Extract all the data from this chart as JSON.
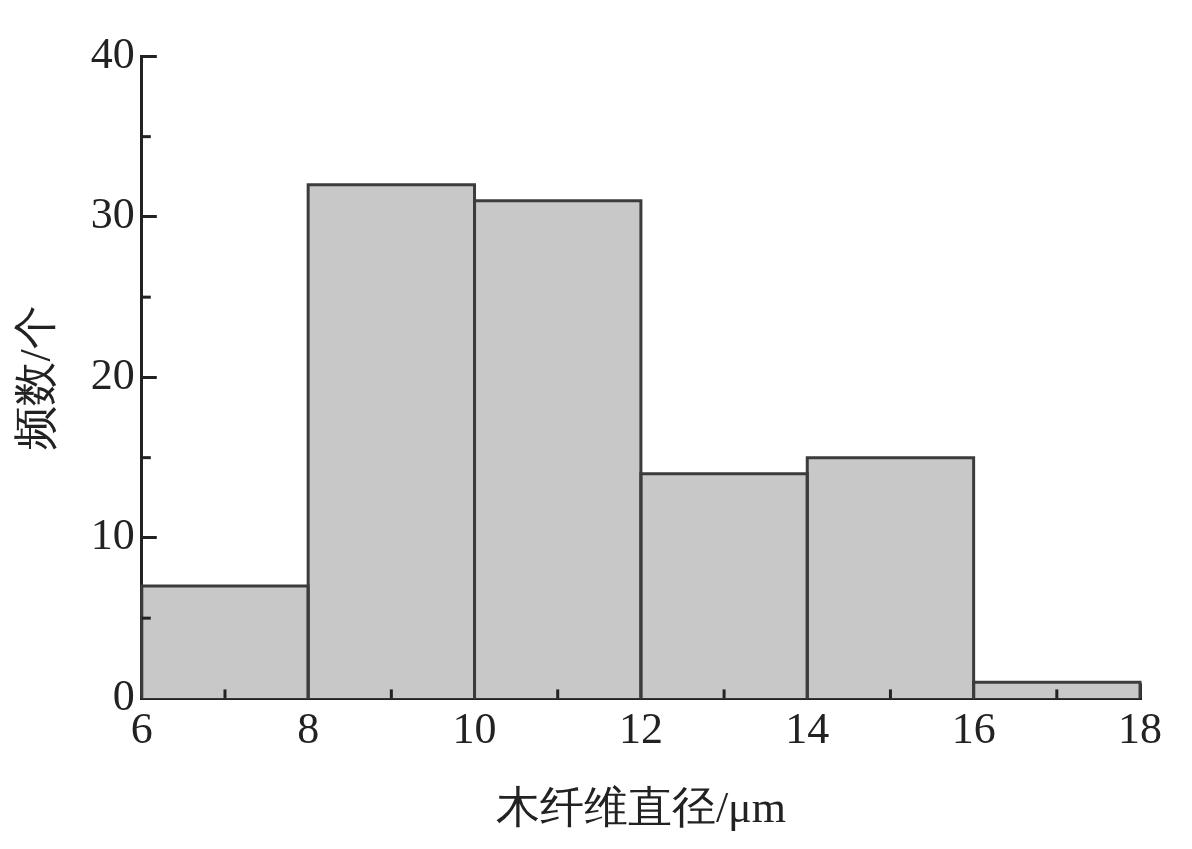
{
  "chart_data": {
    "type": "histogram",
    "xlabel": "木纤维直径/μm",
    "ylabel": "频数/个",
    "bins": [
      6,
      8,
      10,
      12,
      14,
      16,
      18
    ],
    "values": [
      7,
      32,
      31,
      14,
      15,
      1
    ],
    "color": "#c8c8c8",
    "xlim": [
      6,
      18
    ],
    "xticks": [
      6,
      {
        "value": 7,
        "label": null
      },
      8,
      {
        "value": 9,
        "label": null
      },
      10,
      {
        "value": 11,
        "label": null
      },
      12,
      {
        "value": 13,
        "label": null
      },
      14,
      {
        "value": 15,
        "label": null
      },
      16,
      {
        "value": 17,
        "label": null
      },
      18
    ],
    "ylim": [
      0,
      40
    ],
    "yticks": [
      0,
      {
        "value": 5,
        "label": null
      },
      10,
      {
        "value": 15,
        "label": null
      },
      20,
      {
        "value": 25,
        "label": null
      },
      30,
      {
        "value": 35,
        "label": null
      },
      40
    ],
    "grid": false,
    "legend": false
  }
}
